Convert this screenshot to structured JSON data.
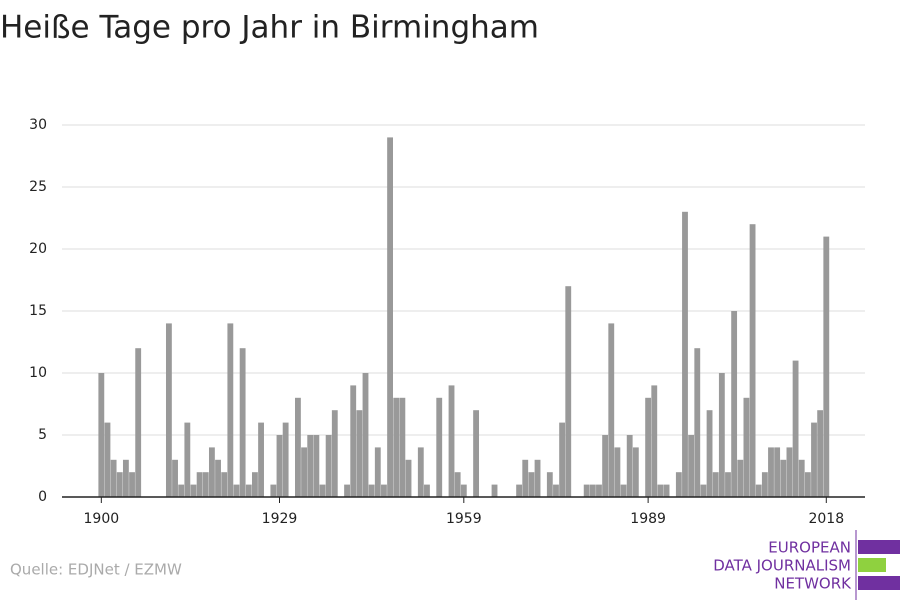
{
  "chart_data": {
    "type": "bar",
    "title": "Heiße Tage pro Jahr in Birmingham",
    "source": "Quelle: EDJNet / EZMW",
    "logo": [
      "EUROPEAN",
      "DATA JOURNALISM",
      "NETWORK"
    ],
    "color": "#999999",
    "x": [
      1900,
      1901,
      1902,
      1903,
      1904,
      1905,
      1906,
      1907,
      1908,
      1909,
      1910,
      1911,
      1912,
      1913,
      1914,
      1915,
      1916,
      1917,
      1918,
      1919,
      1920,
      1921,
      1922,
      1923,
      1924,
      1925,
      1926,
      1927,
      1928,
      1929,
      1930,
      1931,
      1932,
      1933,
      1934,
      1935,
      1936,
      1937,
      1938,
      1939,
      1940,
      1941,
      1942,
      1943,
      1944,
      1945,
      1946,
      1947,
      1948,
      1949,
      1950,
      1951,
      1952,
      1953,
      1954,
      1955,
      1956,
      1957,
      1958,
      1959,
      1960,
      1961,
      1962,
      1963,
      1964,
      1965,
      1966,
      1967,
      1968,
      1969,
      1970,
      1971,
      1972,
      1973,
      1974,
      1975,
      1976,
      1977,
      1978,
      1979,
      1980,
      1981,
      1982,
      1983,
      1984,
      1985,
      1986,
      1987,
      1988,
      1989,
      1990,
      1991,
      1992,
      1993,
      1994,
      1995,
      1996,
      1997,
      1998,
      1999,
      2000,
      2001,
      2002,
      2003,
      2004,
      2005,
      2006,
      2007,
      2008,
      2009,
      2010,
      2011,
      2012,
      2013,
      2014,
      2015,
      2016,
      2017,
      2018
    ],
    "values": [
      10,
      6,
      3,
      2,
      3,
      2,
      12,
      0,
      0,
      0,
      0,
      14,
      3,
      1,
      6,
      1,
      2,
      2,
      4,
      3,
      2,
      14,
      1,
      12,
      1,
      2,
      6,
      0,
      1,
      5,
      6,
      0,
      8,
      4,
      5,
      5,
      1,
      5,
      7,
      0,
      1,
      9,
      7,
      10,
      1,
      4,
      1,
      29,
      8,
      8,
      3,
      0,
      4,
      1,
      0,
      8,
      0,
      9,
      2,
      1,
      0,
      7,
      0,
      0,
      1,
      0,
      0,
      0,
      1,
      3,
      2,
      3,
      0,
      2,
      1,
      6,
      17,
      0,
      0,
      1,
      1,
      1,
      5,
      14,
      4,
      1,
      5,
      4,
      0,
      8,
      9,
      1,
      1,
      0,
      2,
      23,
      5,
      12,
      1,
      7,
      2,
      10,
      2,
      15,
      3,
      8,
      22,
      1,
      2,
      4,
      4,
      3,
      4,
      11,
      3,
      2,
      6,
      7,
      21
    ],
    "xlim": [
      1893.6,
      2024.3
    ],
    "xticks": [
      1900,
      1929,
      1959,
      1989,
      2018
    ],
    "ylim": [
      0,
      30
    ],
    "yticks": [
      0,
      5,
      10,
      15,
      20,
      25,
      30
    ],
    "grid": true
  }
}
